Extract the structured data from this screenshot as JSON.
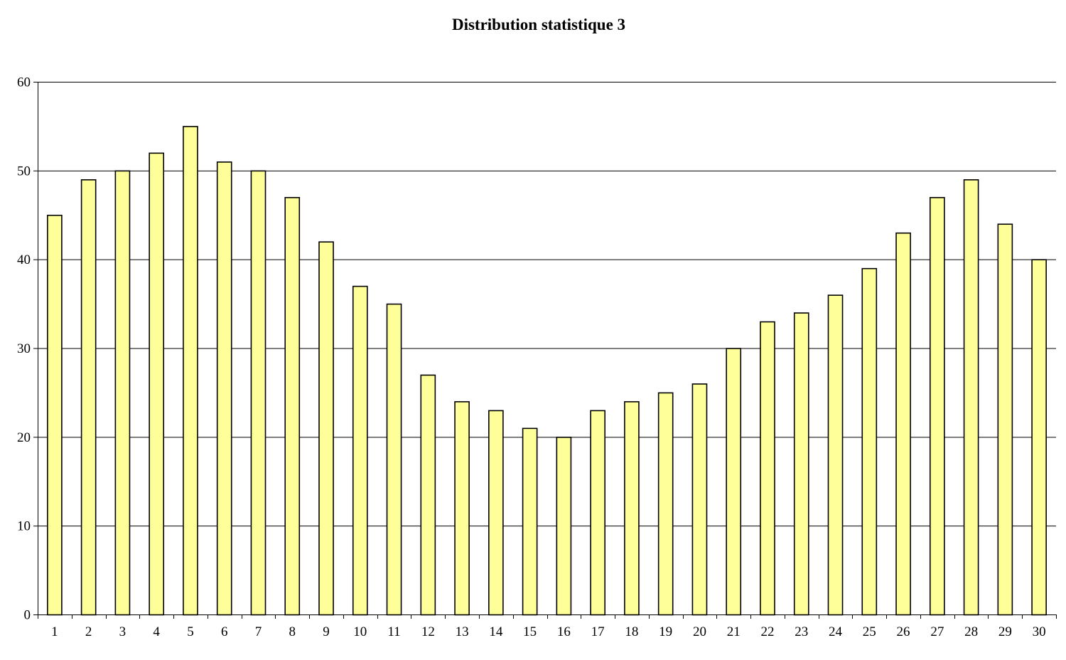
{
  "chart_data": {
    "type": "bar",
    "title": "Distribution statistique 3",
    "xlabel": "",
    "ylabel": "",
    "categories": [
      "1",
      "2",
      "3",
      "4",
      "5",
      "6",
      "7",
      "8",
      "9",
      "10",
      "11",
      "12",
      "13",
      "14",
      "15",
      "16",
      "17",
      "18",
      "19",
      "20",
      "21",
      "22",
      "23",
      "24",
      "25",
      "26",
      "27",
      "28",
      "29",
      "30"
    ],
    "values": [
      45,
      49,
      50,
      52,
      55,
      51,
      50,
      47,
      42,
      37,
      35,
      27,
      24,
      23,
      21,
      20,
      23,
      24,
      25,
      26,
      30,
      33,
      34,
      36,
      39,
      43,
      47,
      49,
      44,
      40
    ],
    "ylim": [
      0,
      60
    ],
    "yticks": [
      0,
      10,
      20,
      30,
      40,
      50,
      60
    ],
    "grid": "horizontal",
    "legend": "none",
    "colors": {
      "bar_fill": "#ffff99",
      "bar_stroke": "#000000",
      "grid": "#000000"
    }
  }
}
